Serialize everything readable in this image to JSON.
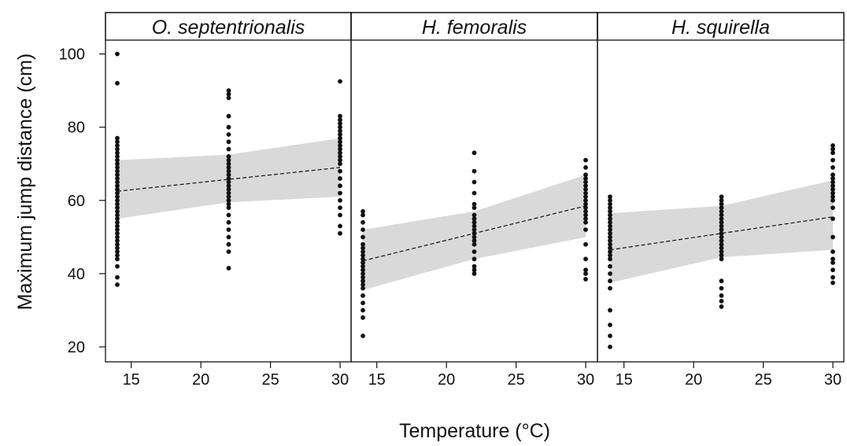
{
  "chart_data": {
    "type": "scatter",
    "xlabel": "Temperature (°C)",
    "ylabel": "Maximum jump distance (cm)",
    "xlim": [
      13,
      30.5
    ],
    "ylim": [
      17,
      104
    ],
    "xticks": [
      "15",
      "20",
      "25",
      "30"
    ],
    "yticks": [
      "20",
      "40",
      "60",
      "80",
      "100"
    ],
    "colors": {
      "points": "#111111",
      "band": "#d9d9d9",
      "trend": "#111111"
    },
    "panels": [
      {
        "name": "O. septentrionalis",
        "trend": {
          "x": [
            14,
            30
          ],
          "y": [
            62.5,
            69
          ]
        },
        "ci_band": {
          "x": [
            14,
            22,
            30
          ],
          "lower": [
            55,
            59.5,
            61
          ],
          "upper": [
            71,
            72.5,
            77
          ]
        },
        "points": [
          {
            "x": 14,
            "y": [
              37,
              39,
              42,
              44,
              45,
              46,
              47,
              48,
              49,
              50,
              51,
              52,
              53,
              54,
              55,
              56,
              57,
              58,
              59,
              60,
              61,
              62,
              63,
              64,
              65,
              66,
              67,
              68,
              69,
              70,
              71,
              72,
              73,
              74,
              75,
              76,
              77,
              92,
              100
            ]
          },
          {
            "x": 22,
            "y": [
              41.5,
              46,
              48,
              50,
              52,
              54,
              56,
              58,
              59,
              60,
              61,
              62,
              63,
              64,
              65,
              66,
              67,
              68,
              69,
              70,
              71,
              72,
              74,
              76,
              78,
              80,
              83,
              88,
              89,
              90
            ]
          },
          {
            "x": 30,
            "y": [
              51,
              53,
              56,
              58,
              60,
              62,
              64,
              66,
              68,
              70,
              71,
              72,
              73,
              74,
              75,
              76,
              77,
              78,
              79,
              80,
              81,
              82,
              83,
              92.5
            ]
          }
        ]
      },
      {
        "name": "H. femoralis",
        "trend": {
          "x": [
            14,
            30
          ],
          "y": [
            43.5,
            58.5
          ]
        },
        "ci_band": {
          "x": [
            14,
            22,
            30
          ],
          "lower": [
            35.5,
            44,
            50
          ],
          "upper": [
            52,
            57,
            67
          ]
        },
        "points": [
          {
            "x": 14,
            "y": [
              23,
              28,
              30,
              32,
              34,
              36,
              37,
              38,
              39,
              40,
              41,
              42,
              43,
              44,
              45,
              46,
              47,
              48,
              50,
              52,
              54,
              56,
              57
            ]
          },
          {
            "x": 22,
            "y": [
              40,
              41,
              42,
              44,
              46,
              48,
              49,
              50,
              51,
              52,
              53,
              54,
              55,
              56,
              58,
              59,
              62,
              65,
              68,
              73
            ]
          },
          {
            "x": 30,
            "y": [
              38.5,
              40,
              41,
              44,
              48,
              52,
              54,
              55,
              56,
              57,
              58,
              59,
              60,
              61,
              62,
              63,
              64,
              65,
              66,
              67,
              69,
              71
            ]
          }
        ]
      },
      {
        "name": "H. squirella",
        "trend": {
          "x": [
            14,
            30
          ],
          "y": [
            46.5,
            55.5
          ]
        },
        "ci_band": {
          "x": [
            14,
            22,
            30
          ],
          "lower": [
            37.5,
            44.5,
            46.5
          ],
          "upper": [
            56.5,
            58.5,
            65.5
          ]
        },
        "points": [
          {
            "x": 14,
            "y": [
              20,
              23,
              26,
              30,
              36,
              38,
              40,
              42,
              44,
              45,
              46,
              47,
              48,
              49,
              50,
              51,
              52,
              53,
              54,
              55,
              56,
              57,
              58,
              59,
              60,
              61
            ]
          },
          {
            "x": 22,
            "y": [
              31,
              32.5,
              34,
              36,
              38,
              44,
              45,
              46,
              47,
              48,
              49,
              50,
              51,
              52,
              53,
              54,
              55,
              56,
              57,
              58,
              59,
              60,
              61
            ]
          },
          {
            "x": 30,
            "y": [
              37.5,
              39,
              41,
              43,
              44,
              46,
              50,
              55,
              58,
              60,
              61,
              62,
              63,
              64,
              65,
              66,
              67,
              69,
              71,
              73,
              74,
              75
            ]
          }
        ]
      }
    ]
  }
}
